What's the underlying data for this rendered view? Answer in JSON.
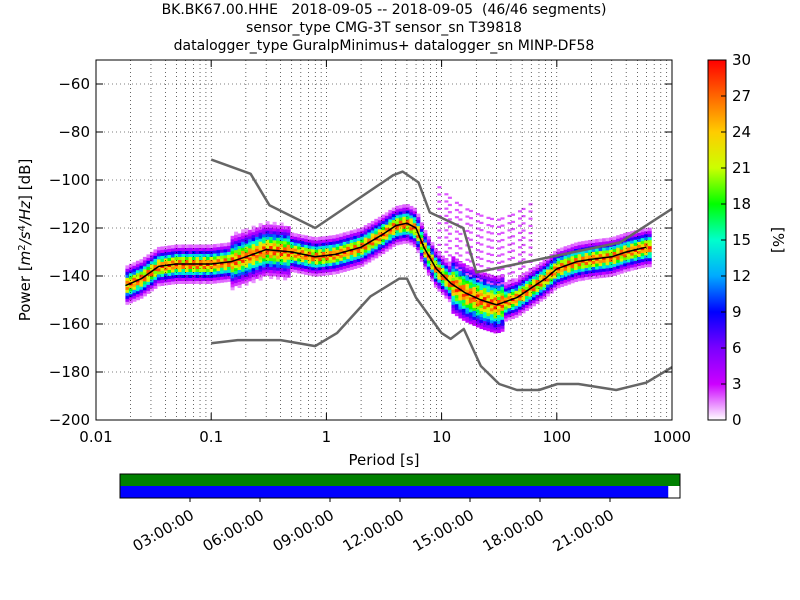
{
  "header": {
    "title_line1": "BK.BK67.00.HHE   2018-09-05 -- 2018-09-05  (46/46 segments)",
    "title_line2": "sensor_type CMG-3T sensor_sn T39818",
    "title_line3": "datalogger_type GuralpMinimus+ datalogger_sn MINP-DF58"
  },
  "chart_data": [
    {
      "type": "heatmap",
      "xlabel": "Period [s]",
      "ylabel": "Power [m²/s⁴/Hz] [dB]",
      "ylabel_parts": [
        "Power ",
        "m",
        "2",
        "/s",
        "4",
        "/Hz",
        " [dB]"
      ],
      "x_scale": "log",
      "xlim": [
        0.01,
        1000
      ],
      "ylim": [
        -200,
        -50
      ],
      "x_ticks": [
        0.01,
        0.1,
        1,
        10,
        100,
        1000
      ],
      "x_tick_labels": [
        "0.01",
        "0.1",
        "1",
        "10",
        "100",
        "1000"
      ],
      "y_ticks": [
        -200,
        -180,
        -160,
        -140,
        -120,
        -100,
        -80,
        -60
      ],
      "y_tick_labels": [
        "−200",
        "−180",
        "−160",
        "−140",
        "−120",
        "−100",
        "−80",
        "−60"
      ],
      "grid": "dotted vertical and horizontal",
      "colorbar": {
        "label": "[%]",
        "range": [
          0,
          30
        ],
        "ticks": [
          0,
          3,
          6,
          9,
          12,
          15,
          18,
          21,
          24,
          27,
          30
        ],
        "colormap": [
          "#ffffff",
          "#cc00ff",
          "#7a00ff",
          "#0000ff",
          "#00aaff",
          "#00ffcc",
          "#00ff00",
          "#ccff00",
          "#ffcc00",
          "#ff6600",
          "#ff0000"
        ]
      },
      "series": [
        {
          "name": "",
          "description_role": "mean PSD",
          "color": "#000000",
          "x": [
            0.018,
            0.025,
            0.035,
            0.05,
            0.07,
            0.1,
            0.15,
            0.2,
            0.3,
            0.5,
            0.8,
            1.2,
            2,
            3,
            4,
            5,
            6,
            7,
            9,
            12,
            16,
            22,
            30,
            45,
            60,
            80,
            100,
            150,
            200,
            300,
            400,
            600
          ],
          "y": [
            -144,
            -141,
            -136,
            -135,
            -135,
            -135,
            -134,
            -132,
            -129,
            -130,
            -132,
            -131,
            -128,
            -123,
            -119,
            -118,
            -120,
            -128,
            -137,
            -143,
            -147,
            -150,
            -152,
            -149,
            -145,
            -141,
            -137,
            -134,
            -133,
            -132,
            -130,
            -128
          ]
        },
        {
          "name": "",
          "description_role": "noise model high",
          "color": "#666666",
          "x": [
            0.1,
            0.22,
            0.32,
            0.8,
            3.8,
            4.6,
            6.3,
            7.9,
            15.4,
            20,
            354.8,
            1000
          ],
          "y": [
            -91.5,
            -97.4,
            -110.5,
            -120,
            -98,
            -96.5,
            -101,
            -113.5,
            -120,
            -138.5,
            -126,
            -112
          ]
        },
        {
          "name": "",
          "description_role": "noise model low",
          "color": "#666666",
          "x": [
            0.1,
            0.17,
            0.4,
            0.8,
            1.24,
            2.4,
            4.3,
            5,
            6,
            10,
            12,
            15.6,
            21.9,
            31.6,
            45,
            70,
            101,
            154,
            328,
            600,
            1000
          ],
          "y": [
            -168,
            -166.7,
            -166.7,
            -169.2,
            -163.7,
            -148.6,
            -141.1,
            -141.1,
            -149,
            -163.8,
            -166.2,
            -162.1,
            -177.5,
            -185,
            -187.5,
            -187.5,
            -185,
            -185,
            -187.5,
            -184.4,
            -178
          ]
        }
      ]
    },
    {
      "type": "timeline",
      "x_tick_labels": [
        "03:00:00",
        "06:00:00",
        "09:00:00",
        "12:00:00",
        "15:00:00",
        "18:00:00",
        "21:00:00"
      ],
      "bars": [
        {
          "color": "#008000",
          "coverage": [
            0,
            1
          ]
        },
        {
          "color": "#0000ff",
          "coverage": [
            0,
            0.979
          ]
        }
      ]
    }
  ]
}
